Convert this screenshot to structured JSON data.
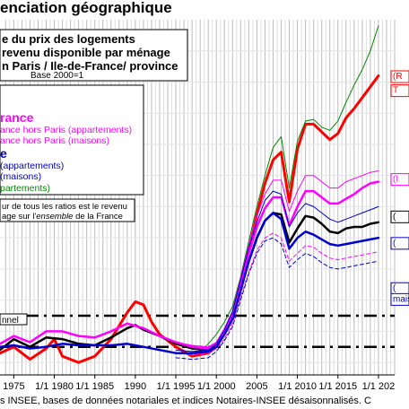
{
  "title": "enciation géographique",
  "footer": "s INSEE, bases de données notariales et indices Notaires-INSEE désaisonnalisés.  C",
  "chart_data": {
    "type": "line",
    "title_box": {
      "lines": [
        "e du prix des logements",
        "revenu disponible par ménage",
        "n Paris / Ile-de-France/ province"
      ],
      "base": "Base 2000=1"
    },
    "legend": [
      {
        "label": "rance",
        "color": "#ff00ff",
        "bold": true
      },
      {
        "label": "ance hors Paris (appartements)",
        "color": "#ff00ff",
        "bold": false
      },
      {
        "label": "ance hors Paris (maisons)",
        "color": "#ff00ff",
        "bold": false
      },
      {
        "label": "e",
        "color": "#0000cc",
        "bold": true
      },
      {
        "label": "(appartements)",
        "color": "#0000cc",
        "bold": false
      },
      {
        "label": "(maisons)",
        "color": "#0000cc",
        "bold": false
      },
      {
        "label": "partements)",
        "color": "#008800",
        "bold": false
      }
    ],
    "note_lines": [
      "ur de tous les ratios est le revenu",
      "age sur l'ensemble de la France"
    ],
    "note_italic_word": "ensemble",
    "tunnel_label": "nnel",
    "right_labels": [
      {
        "text": "(R",
        "color": "#ff0000",
        "y": 2.62
      },
      {
        "text": "T",
        "color": "#ff0000",
        "y": 2.53
      },
      {
        "text": "(I",
        "color": "#ff00ff",
        "y": 1.96
      },
      {
        "text": "(",
        "color": "#000000",
        "y": 1.72
      },
      {
        "text": "(",
        "color": "#0000cc",
        "y": 1.55
      },
      {
        "text": "(",
        "color": "#0000cc",
        "y": 1.26
      },
      {
        "text": "maiso",
        "color": "#0000cc",
        "y": 1.19
      }
    ],
    "x_ticks": [
      {
        "label": "1975",
        "x": 1975
      },
      {
        "label": "1/1 1980",
        "x": 1980
      },
      {
        "label": "1/1 1985",
        "x": 1985
      },
      {
        "label": "1990",
        "x": 1990
      },
      {
        "label": "1/1 1995",
        "x": 1995
      },
      {
        "label": "1/1 2000",
        "x": 2000
      },
      {
        "label": "2005",
        "x": 2005
      },
      {
        "label": "1/1 2010",
        "x": 2010
      },
      {
        "label": "1/1 2015",
        "x": 2015
      },
      {
        "label": "1/1 202",
        "x": 2020
      }
    ],
    "xlim": [
      1973.3,
      2022.0
    ],
    "ylim": [
      0.72,
      3.0
    ],
    "tunnel": [
      1.1,
      0.9
    ],
    "series": [
      {
        "color": "#ff0000",
        "width": 3.0,
        "x": [
          1973.3,
          1975,
          1977,
          1979,
          1980,
          1981,
          1983,
          1985,
          1987,
          1989,
          1990,
          1991,
          1992,
          1993,
          1995,
          1997,
          1999,
          2000,
          2001,
          2002,
          2003,
          2004,
          2005,
          2006,
          2007,
          2008,
          2009,
          2010,
          2011,
          2012,
          2013,
          2014,
          2015,
          2016,
          2017,
          2018,
          2019,
          2020
        ],
        "values": [
          0.86,
          0.9,
          0.82,
          0.89,
          0.95,
          0.84,
          0.8,
          0.84,
          0.95,
          1.12,
          1.19,
          1.17,
          1.06,
          0.98,
          0.9,
          0.84,
          0.86,
          0.9,
          0.99,
          1.1,
          1.3,
          1.52,
          1.75,
          1.95,
          2.1,
          2.15,
          1.83,
          2.17,
          2.33,
          2.33,
          2.28,
          2.23,
          2.27,
          2.37,
          2.43,
          2.5,
          2.57,
          2.64
        ]
      },
      {
        "color": "#008800",
        "width": 1.0,
        "x": [
          1998,
          1999,
          2000,
          2001,
          2002,
          2003,
          2004,
          2005,
          2006,
          2007,
          2008,
          2009,
          2010,
          2011,
          2012,
          2013,
          2014,
          2015,
          2016,
          2017,
          2018,
          2019,
          2020
        ],
        "values": [
          0.87,
          0.92,
          0.98,
          1.06,
          1.16,
          1.35,
          1.58,
          1.8,
          2.0,
          2.18,
          2.25,
          1.92,
          2.22,
          2.35,
          2.36,
          2.31,
          2.29,
          2.35,
          2.47,
          2.58,
          2.68,
          2.8,
          2.96
        ]
      },
      {
        "color": "#000000",
        "width": 2.5,
        "x": [
          1973.3,
          1975,
          1977,
          1979,
          1981,
          1983,
          1985,
          1987,
          1989,
          1990,
          1991,
          1993,
          1995,
          1997,
          1999,
          2000,
          2001,
          2002,
          2003,
          2004,
          2005,
          2006,
          2007,
          2008,
          2009,
          2010,
          2011,
          2012,
          2013,
          2014,
          2015,
          2016,
          2017,
          2018,
          2019,
          2020
        ],
        "values": [
          0.88,
          0.95,
          0.9,
          0.96,
          0.95,
          0.92,
          0.91,
          0.96,
          1.02,
          1.04,
          1.01,
          0.97,
          0.92,
          0.89,
          0.88,
          0.91,
          0.99,
          1.09,
          1.27,
          1.45,
          1.6,
          1.71,
          1.76,
          1.75,
          1.57,
          1.66,
          1.74,
          1.73,
          1.69,
          1.64,
          1.63,
          1.66,
          1.67,
          1.67,
          1.69,
          1.7
        ]
      },
      {
        "color": "#ff00ff",
        "width": 2.5,
        "x": [
          1973.3,
          1975,
          1977,
          1979,
          1981,
          1983,
          1985,
          1987,
          1989,
          1991,
          1993,
          1995,
          1997,
          1999,
          2000,
          2001,
          2002,
          2003,
          2004,
          2005,
          2006,
          2007,
          2008,
          2009,
          2010,
          2011,
          2012,
          2013,
          2014,
          2015,
          2016,
          2017,
          2018,
          2019,
          2020
        ],
        "values": [
          0.92,
          0.97,
          0.93,
          1.0,
          1.0,
          0.97,
          0.96,
          1.0,
          1.05,
          1.02,
          0.97,
          0.93,
          0.9,
          0.89,
          0.92,
          1.0,
          1.11,
          1.31,
          1.5,
          1.67,
          1.79,
          1.86,
          1.86,
          1.68,
          1.8,
          1.9,
          1.9,
          1.86,
          1.82,
          1.82,
          1.85,
          1.88,
          1.92,
          1.95,
          1.96
        ]
      },
      {
        "color": "#ff00ff",
        "width": 1.0,
        "x": [
          1995,
          1997,
          1999,
          2000,
          2001,
          2002,
          2003,
          2004,
          2005,
          2006,
          2007,
          2008,
          2009,
          2010,
          2011,
          2012,
          2013,
          2014,
          2015,
          2016,
          2017,
          2018,
          2019,
          2020
        ],
        "values": [
          0.93,
          0.91,
          0.9,
          0.93,
          1.02,
          1.13,
          1.34,
          1.55,
          1.74,
          1.88,
          1.97,
          1.97,
          1.77,
          1.9,
          2.0,
          2.0,
          1.96,
          1.92,
          1.92,
          1.96,
          1.98,
          2.0,
          2.02,
          2.03
        ]
      },
      {
        "color": "#ff00ff",
        "width": 1.0,
        "dash": "4,3",
        "x": [
          1995,
          1997,
          1999,
          2000,
          2001,
          2002,
          2003,
          2004,
          2005,
          2006,
          2007,
          2008,
          2009,
          2010,
          2011,
          2012,
          2013,
          2014,
          2015,
          2016,
          2017,
          2018,
          2019,
          2020
        ],
        "values": [
          0.86,
          0.85,
          0.86,
          0.89,
          0.95,
          1.05,
          1.22,
          1.38,
          1.52,
          1.6,
          1.63,
          1.6,
          1.45,
          1.5,
          1.55,
          1.54,
          1.5,
          1.47,
          1.46,
          1.47,
          1.48,
          1.49,
          1.5,
          1.51
        ]
      },
      {
        "color": "#0000cc",
        "width": 2.5,
        "x": [
          1973.3,
          1975,
          1977,
          1979,
          1981,
          1983,
          1985,
          1987,
          1989,
          1991,
          1993,
          1995,
          1997,
          1999,
          2000,
          2001,
          2002,
          2003,
          2004,
          2005,
          2006,
          2007,
          2008,
          2009,
          2010,
          2011,
          2012,
          2013,
          2014,
          2015,
          2016,
          2017,
          2018,
          2019,
          2020
        ],
        "values": [
          0.9,
          0.91,
          0.89,
          0.9,
          0.92,
          0.91,
          0.91,
          0.91,
          0.92,
          0.9,
          0.88,
          0.86,
          0.86,
          0.87,
          0.9,
          0.98,
          1.08,
          1.26,
          1.45,
          1.6,
          1.71,
          1.76,
          1.72,
          1.53,
          1.6,
          1.64,
          1.62,
          1.59,
          1.56,
          1.55,
          1.56,
          1.57,
          1.58,
          1.59,
          1.6
        ]
      },
      {
        "color": "#0000cc",
        "width": 1.0,
        "x": [
          1995,
          1997,
          1999,
          2000,
          2001,
          2002,
          2003,
          2004,
          2005,
          2006,
          2007,
          2008,
          2009,
          2010,
          2011,
          2012,
          2013,
          2014,
          2015,
          2016,
          2017,
          2018,
          2019,
          2020
        ],
        "values": [
          0.88,
          0.87,
          0.88,
          0.92,
          1.01,
          1.13,
          1.33,
          1.54,
          1.7,
          1.84,
          1.9,
          1.88,
          1.67,
          1.76,
          1.82,
          1.8,
          1.76,
          1.72,
          1.7,
          1.72,
          1.74,
          1.76,
          1.78,
          1.8
        ]
      },
      {
        "color": "#0000cc",
        "width": 1.0,
        "dash": "4,3",
        "x": [
          1995,
          1997,
          1999,
          2000,
          2001,
          2002,
          2003,
          2004,
          2005,
          2006,
          2007,
          2008,
          2009,
          2010,
          2011,
          2012,
          2013,
          2014,
          2015,
          2016,
          2017,
          2018,
          2019,
          2020
        ],
        "values": [
          0.83,
          0.82,
          0.83,
          0.87,
          0.94,
          1.03,
          1.2,
          1.37,
          1.5,
          1.58,
          1.6,
          1.56,
          1.41,
          1.46,
          1.5,
          1.48,
          1.44,
          1.41,
          1.4,
          1.41,
          1.42,
          1.43,
          1.44,
          1.45
        ]
      }
    ]
  }
}
